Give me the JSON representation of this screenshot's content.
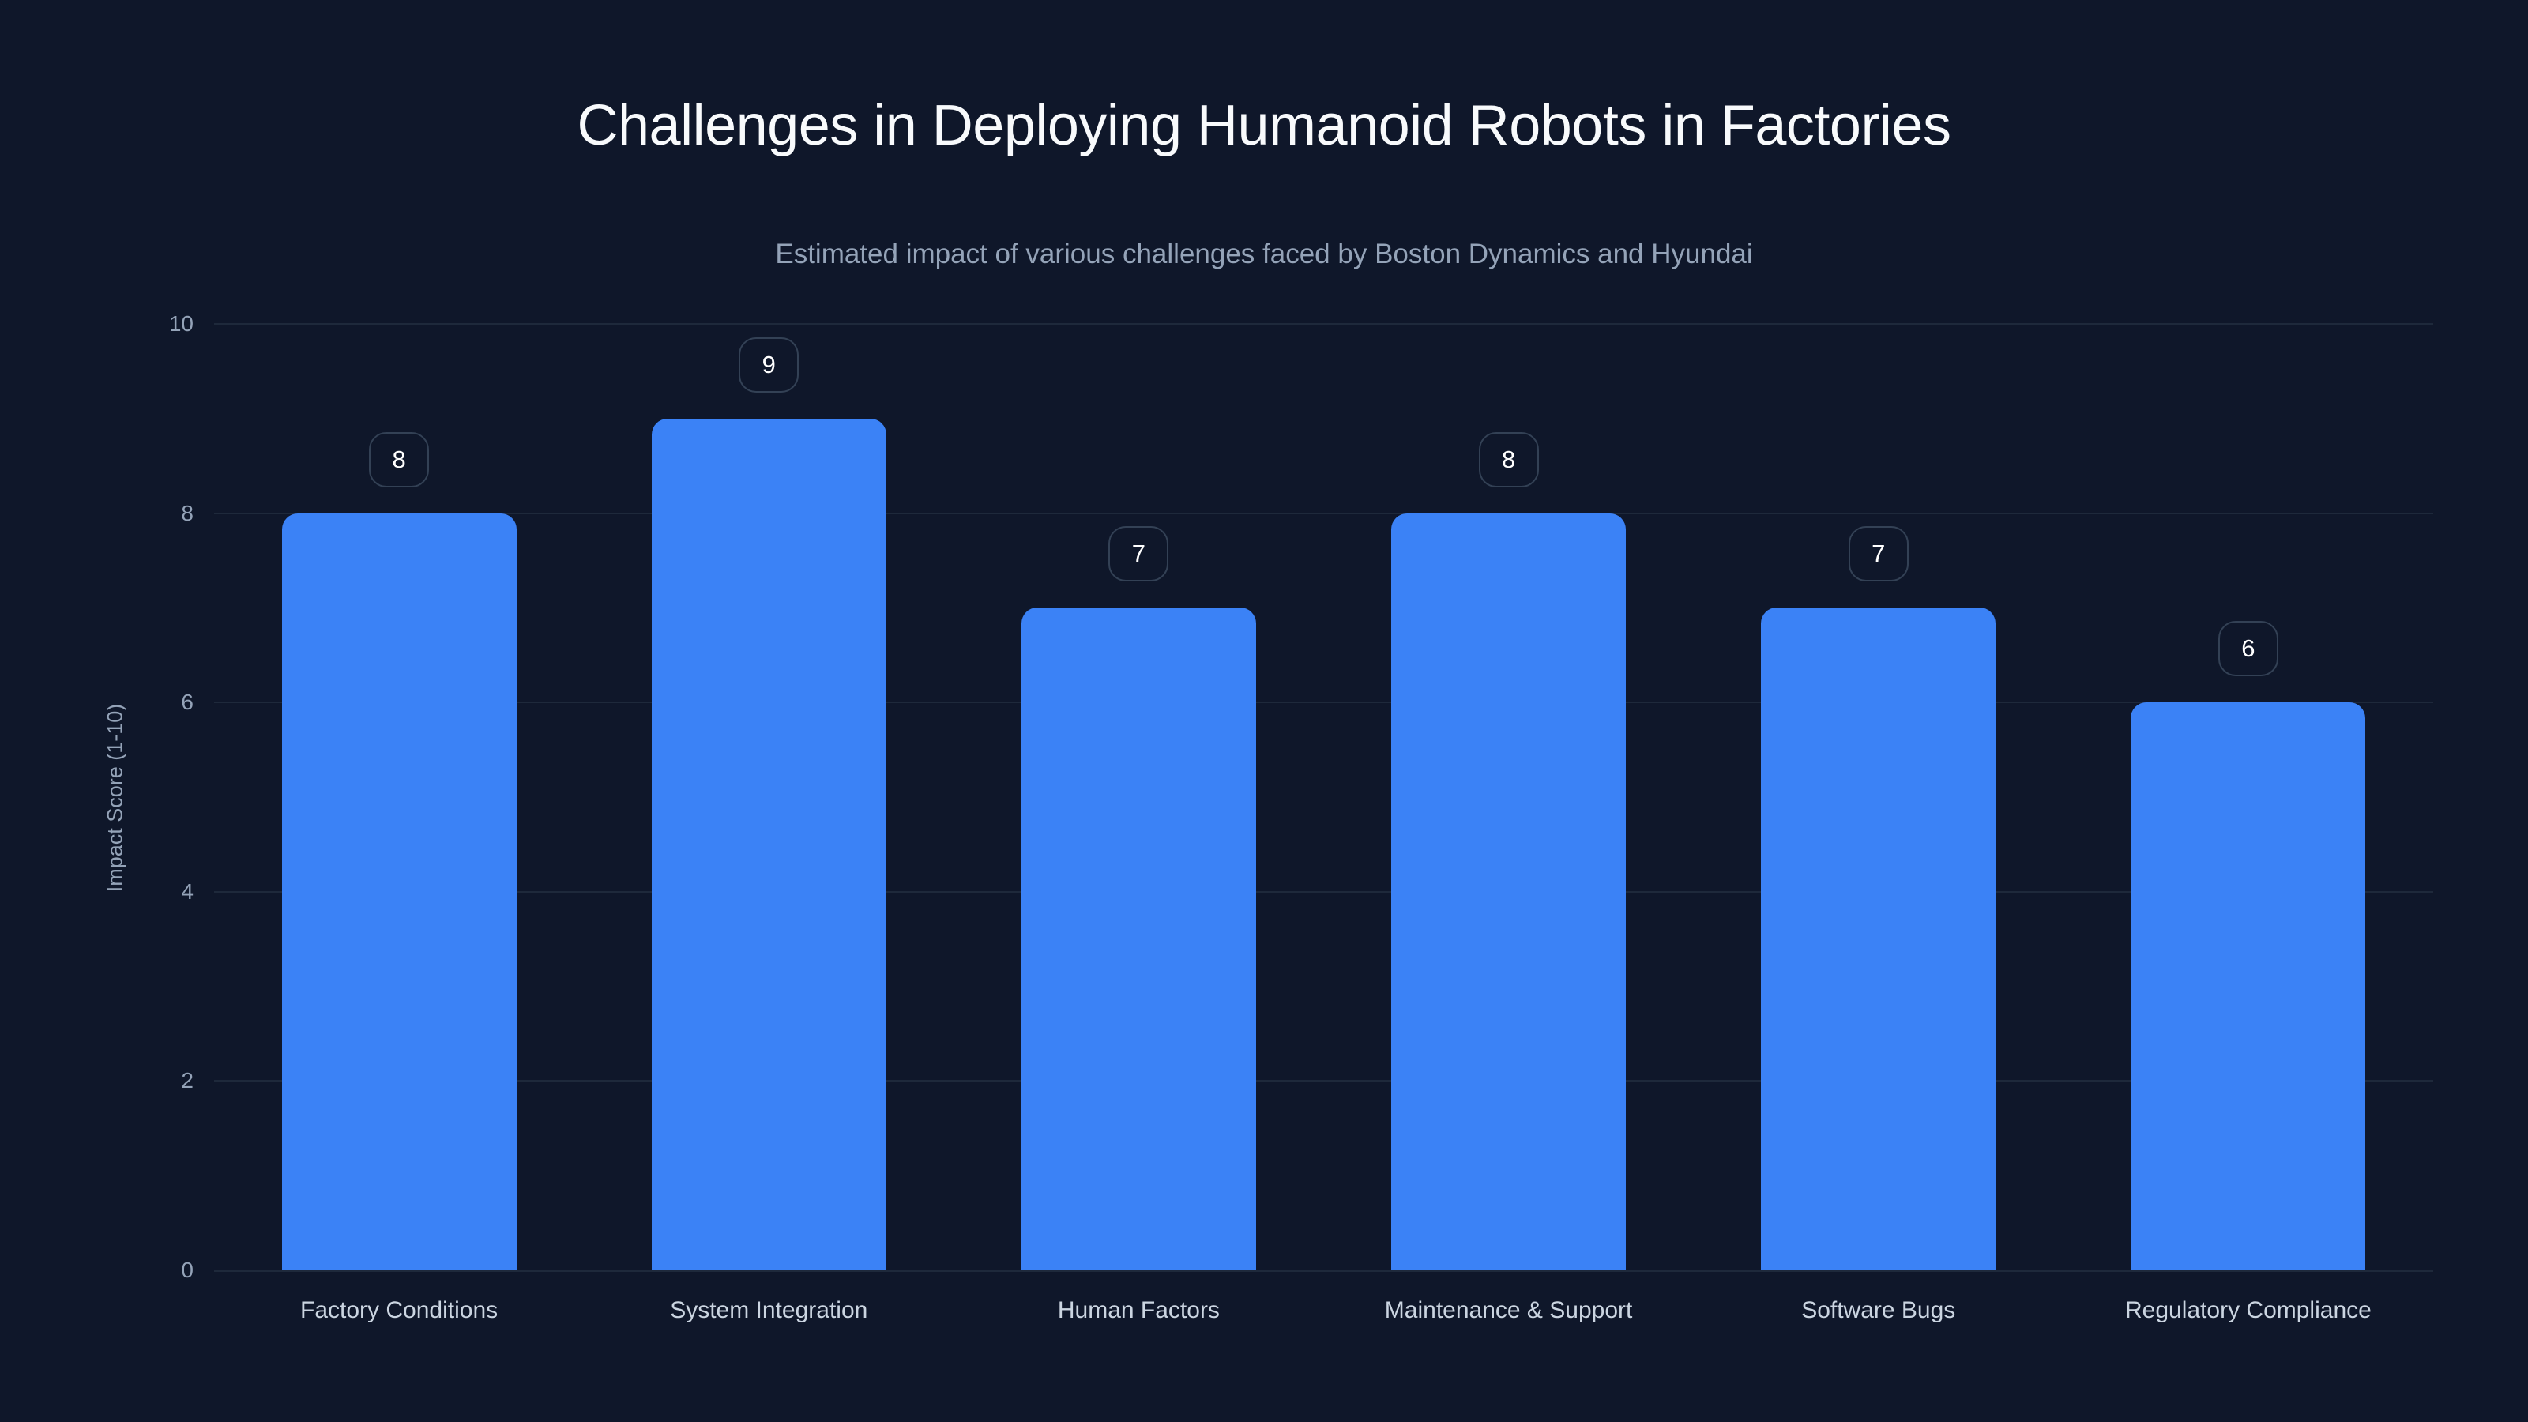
{
  "chart_data": {
    "type": "bar",
    "title": "Challenges in Deploying Humanoid Robots in Factories",
    "subtitle": "Estimated impact of various challenges faced by Boston Dynamics and Hyundai",
    "xlabel": "",
    "ylabel": "Impact Score (1-10)",
    "ylim": [
      0,
      10
    ],
    "yticks": [
      "0",
      "2",
      "4",
      "6",
      "8",
      "10"
    ],
    "grid": true,
    "legend": null,
    "categories": [
      "Factory Conditions",
      "System Integration",
      "Human Factors",
      "Maintenance & Support",
      "Software Bugs",
      "Regulatory Compliance"
    ],
    "values": [
      8,
      9,
      7,
      8,
      7,
      6
    ],
    "data_labels": [
      "8",
      "9",
      "7",
      "8",
      "7",
      "6"
    ],
    "colors": {
      "bar": "#3b82f6",
      "background": "#0f172a",
      "grid": "#1e293b",
      "badge_border": "#334155"
    }
  }
}
